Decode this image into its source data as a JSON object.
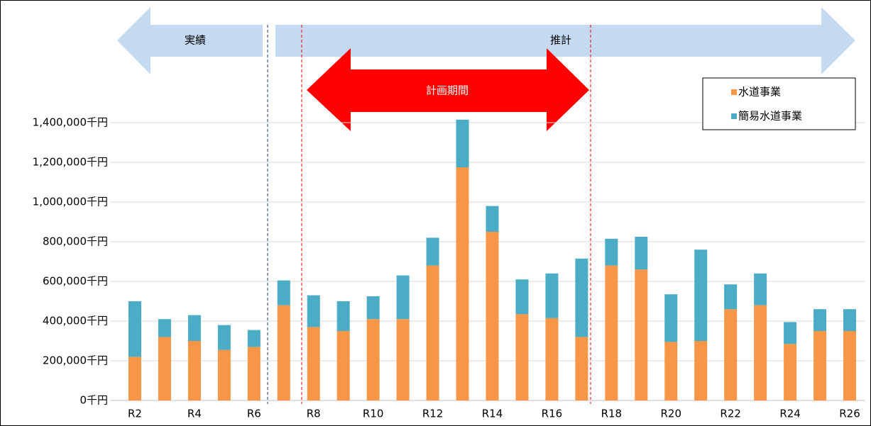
{
  "chart_data": {
    "type": "stacked_bar",
    "annotations": [
      "実績",
      "推計",
      "計画期間"
    ],
    "categories": [
      "R2",
      null,
      "R4",
      null,
      "R6",
      null,
      "R8",
      null,
      "R10",
      null,
      "R12",
      null,
      "R14",
      null,
      "R16",
      null,
      "R18",
      null,
      "R20",
      null,
      "R22",
      null,
      "R24",
      null,
      "R26"
    ],
    "series": [
      {
        "name": "水道事業",
        "color": "#f79646",
        "values": [
          220000,
          320000,
          300000,
          255000,
          270000,
          480000,
          370000,
          350000,
          410000,
          410000,
          680000,
          1175000,
          850000,
          435000,
          415000,
          320000,
          680000,
          660000,
          295000,
          300000,
          460000,
          480000,
          285000,
          350000,
          350000
        ]
      },
      {
        "name": "簡易水道事業",
        "color": "#4bacc6",
        "values": [
          280000,
          90000,
          130000,
          125000,
          85000,
          125000,
          160000,
          150000,
          115000,
          220000,
          140000,
          240000,
          130000,
          175000,
          225000,
          395000,
          135000,
          165000,
          240000,
          460000,
          125000,
          160000,
          110000,
          110000,
          110000
        ]
      }
    ],
    "ylim": [
      0,
      1400000
    ],
    "yticks": [
      {
        "value": 0,
        "label": "0千円"
      },
      {
        "value": 200000,
        "label": "200,000千円"
      },
      {
        "value": 400000,
        "label": "400,000千円"
      },
      {
        "value": 600000,
        "label": "600,000千円"
      },
      {
        "value": 800000,
        "label": "800,000千円"
      },
      {
        "value": 1000000,
        "label": "1,000,000千円"
      },
      {
        "value": 1200000,
        "label": "1,200,000千円"
      },
      {
        "value": 1400000,
        "label": "1,400,000千円"
      }
    ],
    "grid": true,
    "legend": "upper right"
  }
}
